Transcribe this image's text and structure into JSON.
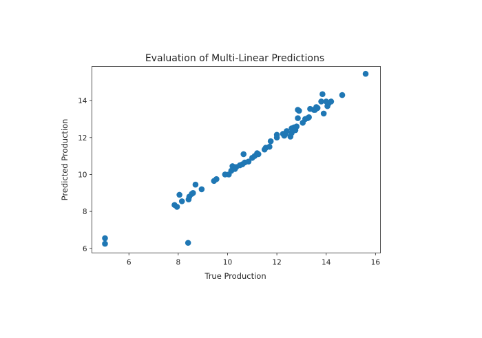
{
  "chart_data": {
    "type": "scatter",
    "title": "Evaluation of Multi-Linear Predictions",
    "xlabel": "True Production",
    "ylabel": "Predicted Production",
    "xlim": [
      4.5,
      16.2
    ],
    "ylim": [
      5.75,
      15.85
    ],
    "xticks": [
      6,
      8,
      10,
      12,
      14,
      16
    ],
    "yticks": [
      6,
      8,
      10,
      12,
      14
    ],
    "grid": false,
    "marker_color": "#1f77b4",
    "series": [
      {
        "x": [
          5.03,
          5.03,
          8.4,
          7.85,
          7.95,
          8.05,
          8.15,
          8.42,
          8.45,
          8.55,
          8.6,
          8.7,
          8.95,
          9.45,
          9.55,
          9.9,
          10.05,
          10.15,
          10.2,
          10.3,
          10.35,
          10.5,
          10.6,
          10.7,
          10.65,
          10.85,
          11.0,
          11.1,
          11.2,
          11.25,
          11.5,
          11.55,
          11.7,
          11.75,
          12.0,
          12.0,
          12.25,
          12.3,
          12.35,
          12.4,
          12.55,
          12.6,
          12.6,
          12.7,
          12.75,
          12.8,
          12.85,
          12.9,
          12.85,
          13.05,
          13.15,
          13.25,
          13.3,
          13.35,
          13.5,
          13.55,
          13.6,
          13.65,
          13.85,
          13.8,
          13.9,
          14.0,
          14.05,
          14.1,
          14.2,
          14.65,
          15.6
        ],
        "y": [
          6.55,
          6.25,
          6.3,
          8.35,
          8.25,
          8.9,
          8.55,
          8.65,
          8.8,
          8.95,
          9.0,
          9.45,
          9.2,
          9.65,
          9.75,
          10.0,
          10.0,
          10.2,
          10.45,
          10.3,
          10.4,
          10.5,
          10.55,
          10.65,
          11.1,
          10.7,
          10.9,
          11.0,
          11.15,
          11.1,
          11.35,
          11.45,
          11.5,
          11.8,
          12.0,
          12.15,
          12.2,
          12.1,
          12.2,
          12.35,
          12.05,
          12.25,
          12.5,
          12.55,
          12.4,
          12.6,
          13.05,
          13.45,
          13.5,
          12.8,
          13.0,
          13.05,
          13.1,
          13.55,
          13.5,
          13.5,
          13.65,
          13.6,
          14.35,
          13.95,
          13.3,
          13.95,
          13.7,
          13.85,
          13.95,
          14.3,
          15.45
        ]
      }
    ]
  }
}
